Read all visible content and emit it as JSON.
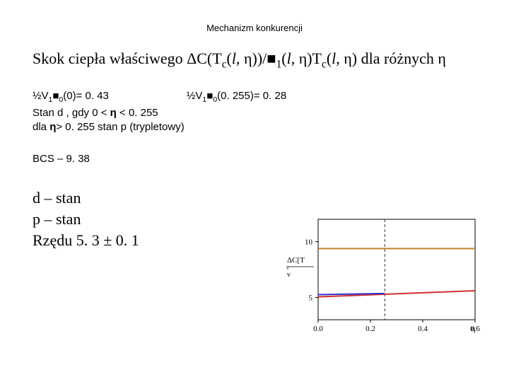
{
  "header": "Mechanizm konkurencji",
  "title_prefix": "Skok ciepła właściwego ",
  "title_suffix": "  dla różnych ",
  "val1_prefix": "½V",
  "val1_mid": "(0)= ",
  "val1_num": "0. 43",
  "val2_prefix": "½V",
  "val2_mid": "(0. 255)= ",
  "val2_num": "0. 28",
  "state_d": "Stan d ,  gdy  0 <",
  "state_d_val": " < 0. 255",
  "state_p_pre": "dla ",
  "state_p_mid": "> 0. 255  stan p (trypletowy)",
  "bcs_label": "BCS  –  ",
  "bcs_val": "9. 38",
  "d_stan": "d – stan",
  "p_stan": "p – stan",
  "rzedu": "Rzędu  5. 3 ± 0. 1",
  "chart": {
    "xlim": [
      0,
      0.6
    ],
    "ylim": [
      3,
      12
    ],
    "xticks": [
      0,
      0.2,
      0.4,
      0.6
    ],
    "yticks": [
      5,
      10
    ],
    "vline_x": 0.255,
    "bcs_y": 9.38,
    "colors": {
      "axis": "#000000",
      "grid_dash": "#333333",
      "bcs_line": "#c08020",
      "d_line": "#3030d0",
      "p_line": "#d03030",
      "bg": "#ffffff"
    },
    "d_series": {
      "x": [
        0.0,
        0.255
      ],
      "y": [
        5.25,
        5.35
      ]
    },
    "p_series": {
      "x": [
        0.0,
        0.6
      ],
      "y": [
        5.05,
        5.6
      ]
    }
  }
}
